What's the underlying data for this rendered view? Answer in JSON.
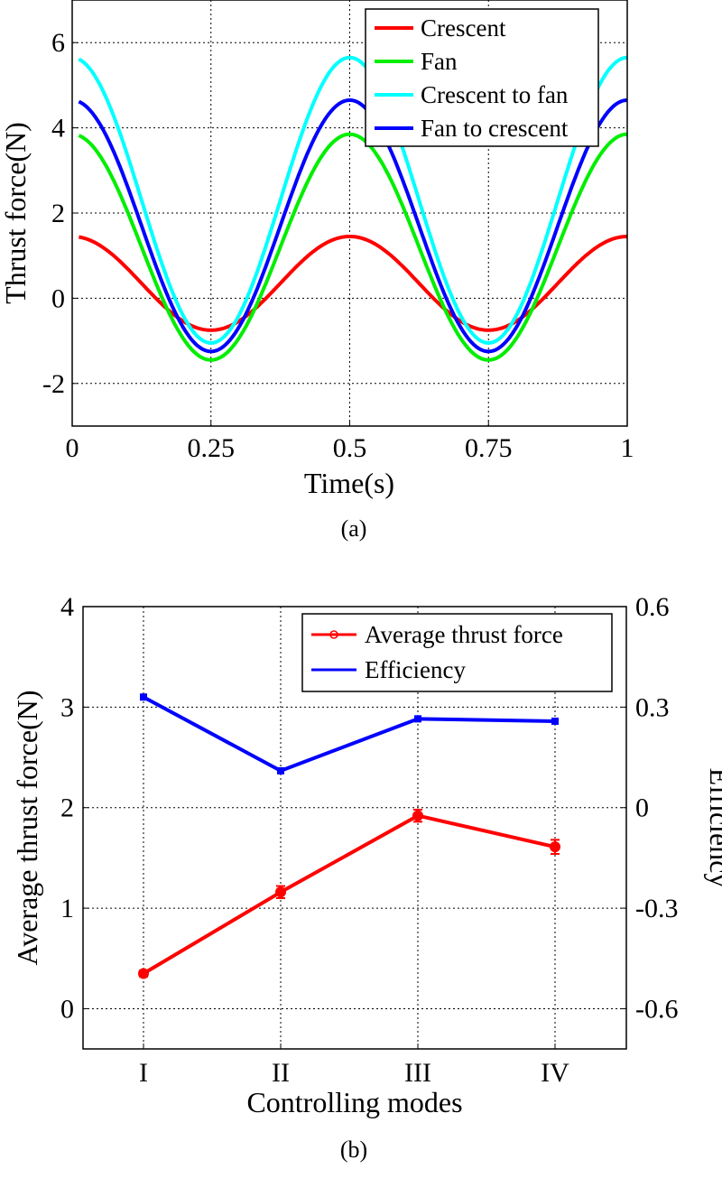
{
  "chart_data": [
    {
      "type": "line",
      "caption": "(a)",
      "xlabel": "Time(s)",
      "ylabel": "Thrust force(N)",
      "xlim": [
        0,
        1
      ],
      "ylim": [
        -3,
        7
      ],
      "xticks": [
        0,
        0.25,
        0.5,
        0.75,
        1
      ],
      "xtick_labels": [
        "0",
        "0.25",
        "0.5",
        "0.75",
        "1"
      ],
      "yticks": [
        -2,
        0,
        2,
        4,
        6
      ],
      "ytick_labels": [
        "-2",
        "0",
        "2",
        "4",
        "6"
      ],
      "grid": true,
      "legend_position": "top-right",
      "series": [
        {
          "name": "Crescent",
          "color": "#ff0000",
          "offset": 0.35,
          "amplitude": 1.1,
          "fit": "offset + amplitude*cos(4*pi*t)"
        },
        {
          "name": "Fan",
          "color": "#00ee00",
          "offset": 1.2,
          "amplitude": 2.65,
          "fit": "offset + amplitude*cos(4*pi*t)"
        },
        {
          "name": "Crescent to fan",
          "color": "#00ffff",
          "offset": 2.3,
          "amplitude": 3.35,
          "fit": "offset + amplitude*cos(4*pi*t)"
        },
        {
          "name": "Fan to crescent",
          "color": "#0000ff",
          "offset": 1.7,
          "amplitude": 2.95,
          "fit": "offset + amplitude*cos(4*pi*t)"
        }
      ]
    },
    {
      "type": "line",
      "caption": "(b)",
      "xlabel": "Controlling modes",
      "ylabel": "Average thrust force(N)",
      "y2label": "Efficiency",
      "categories": [
        "I",
        "II",
        "III",
        "IV"
      ],
      "ylim": [
        -0.4,
        4
      ],
      "yticks": [
        0,
        1,
        2,
        3,
        4
      ],
      "ytick_labels": [
        "0",
        "1",
        "2",
        "3",
        "4"
      ],
      "y2lim": [
        -0.72,
        0.6
      ],
      "y2ticks": [
        -0.6,
        -0.3,
        0,
        0.3,
        0.6
      ],
      "y2tick_labels": [
        "-0.6",
        "-0.3",
        "0",
        "0.3",
        "0.6"
      ],
      "grid": true,
      "legend_position": "top-right",
      "series": [
        {
          "name": "Average thrust force",
          "color": "#ff0000",
          "axis": "left",
          "marker": "circle",
          "values": [
            0.35,
            1.16,
            1.92,
            1.61
          ],
          "errors": [
            0.03,
            0.06,
            0.06,
            0.07
          ]
        },
        {
          "name": "Efficiency",
          "color": "#0000ff",
          "axis": "right",
          "marker": "square",
          "values": [
            0.33,
            0.11,
            0.265,
            0.258
          ]
        }
      ]
    }
  ]
}
